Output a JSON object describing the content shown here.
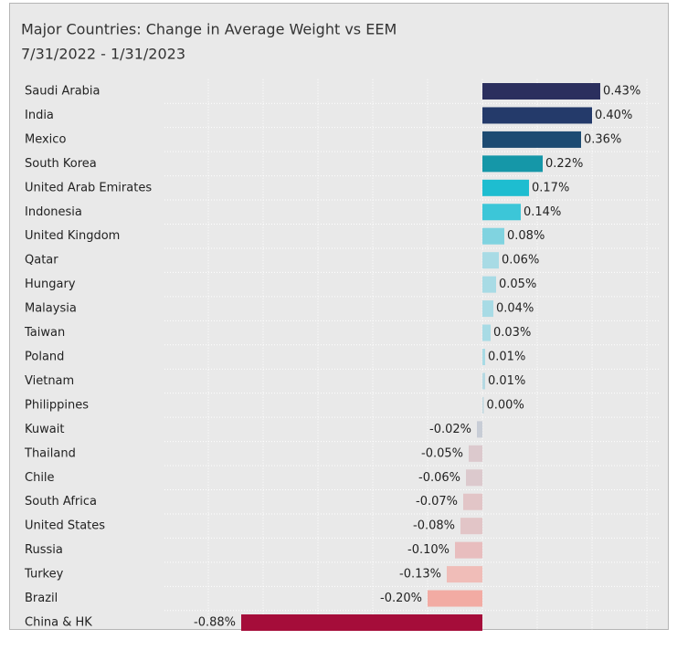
{
  "chart_data": {
    "type": "bar",
    "orientation": "horizontal",
    "title": "Major Countries:  Change in Average Weight vs EEM",
    "subtitle": "7/31/2022 - 1/31/2023",
    "categories": [
      "Saudi Arabia",
      "India",
      "Mexico",
      "South Korea",
      "United Arab Emirates",
      "Indonesia",
      "United Kingdom",
      "Qatar",
      "Hungary",
      "Malaysia",
      "Taiwan",
      "Poland",
      "Vietnam",
      "Philippines",
      "Kuwait",
      "Thailand",
      "Chile",
      "South Africa",
      "United States",
      "Russia",
      "Turkey",
      "Brazil",
      "China & HK"
    ],
    "values": [
      0.43,
      0.4,
      0.36,
      0.22,
      0.17,
      0.14,
      0.08,
      0.06,
      0.05,
      0.04,
      0.03,
      0.01,
      0.01,
      0.0,
      -0.02,
      -0.05,
      -0.06,
      -0.07,
      -0.08,
      -0.1,
      -0.13,
      -0.2,
      -0.88
    ],
    "value_labels": [
      "0.43%",
      "0.40%",
      "0.36%",
      "0.22%",
      "0.17%",
      "0.14%",
      "0.08%",
      "0.06%",
      "0.05%",
      "0.04%",
      "0.03%",
      "0.01%",
      "0.01%",
      "0.00%",
      "-0.02%",
      "-0.05%",
      "-0.06%",
      "-0.07%",
      "-0.08%",
      "-0.10%",
      "-0.13%",
      "-0.20%",
      "-0.88%"
    ],
    "colors": [
      "#2b2f5e",
      "#243a6a",
      "#1d4b72",
      "#1597a8",
      "#1ebdd0",
      "#3cc6d8",
      "#80d3e0",
      "#a8dbe5",
      "#a8dbe5",
      "#a8dbe5",
      "#a8dbe5",
      "#a8dbe5",
      "#b5d9e2",
      "#c0d8e0",
      "#c8cdd6",
      "#dcc9cd",
      "#dcc9cd",
      "#e2c5c7",
      "#e2c5c7",
      "#e8bdbe",
      "#f0bdb8",
      "#f2aba3",
      "#a50d3a"
    ],
    "xlim": [
      -1.2,
      0.6
    ],
    "xticks": [
      -1.0,
      -0.8,
      -0.6,
      -0.4,
      -0.2,
      0,
      0.2,
      0.4,
      0.6
    ],
    "grid": true
  }
}
